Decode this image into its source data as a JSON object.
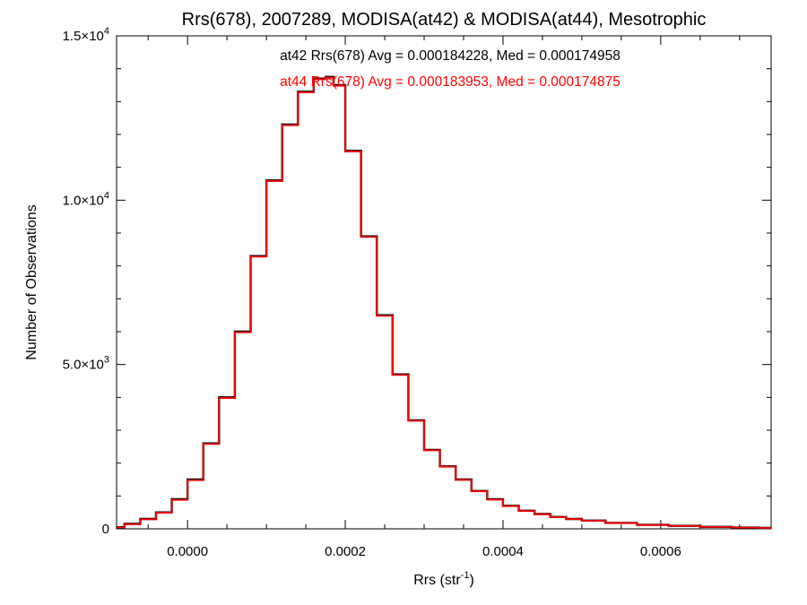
{
  "chart_data": {
    "type": "line",
    "title": "Rrs(678), 2007289, MODISA(at42) & MODISA(at44), Mesotrophic",
    "xlabel_text": "Rrs (str",
    "xlabel_sup": "-1",
    "xlabel_close": ")",
    "ylabel": "Number of Observations",
    "xlim": [
      -9e-05,
      0.00074
    ],
    "ylim": [
      0,
      15000
    ],
    "x_ticks": [
      {
        "value": 0.0,
        "label": "0.0000"
      },
      {
        "value": 0.0002,
        "label": "0.0002"
      },
      {
        "value": 0.0004,
        "label": "0.0004"
      },
      {
        "value": 0.0006,
        "label": "0.0006"
      }
    ],
    "y_ticks": [
      {
        "value": 0,
        "mantissa": "0",
        "exponent": ""
      },
      {
        "value": 5000,
        "mantissa": "5.0×10",
        "exponent": "3"
      },
      {
        "value": 10000,
        "mantissa": "1.0×10",
        "exponent": "4"
      },
      {
        "value": 15000,
        "mantissa": "1.5×10",
        "exponent": "4"
      }
    ],
    "annotations": [
      {
        "text": "at42 Rrs(678) Avg = 0.000184228, Med = 0.000174958",
        "color": "#000000"
      },
      {
        "text": "at44 Rrs(678) Avg = 0.000183953, Med = 0.000174875",
        "color": "#ff0000"
      }
    ],
    "x": [
      -9e-05,
      -7e-05,
      -5e-05,
      -3e-05,
      -1e-05,
      1e-05,
      3e-05,
      5e-05,
      7e-05,
      9e-05,
      0.00011,
      0.00013,
      0.00015,
      0.00017,
      0.00018,
      0.00019,
      0.00021,
      0.00023,
      0.00025,
      0.00027,
      0.00029,
      0.00031,
      0.00033,
      0.00035,
      0.00037,
      0.00039,
      0.00041,
      0.00043,
      0.00045,
      0.00047,
      0.00049,
      0.00051,
      0.00055,
      0.00059,
      0.00063,
      0.00067,
      0.00071,
      0.00074
    ],
    "series": [
      {
        "color": "#000000",
        "values": [
          50,
          150,
          300,
          500,
          900,
          1500,
          2600,
          4000,
          6000,
          8300,
          10600,
          12300,
          13300,
          13700,
          13750,
          13500,
          11500,
          8900,
          6500,
          4700,
          3300,
          2400,
          1900,
          1500,
          1150,
          900,
          700,
          550,
          450,
          360,
          300,
          250,
          180,
          120,
          90,
          60,
          40,
          30
        ]
      },
      {
        "color": "#ff0000",
        "values": [
          45,
          140,
          290,
          490,
          880,
          1480,
          2580,
          3980,
          5980,
          8280,
          10580,
          12280,
          13280,
          13680,
          13730,
          13480,
          11480,
          8880,
          6480,
          4680,
          3290,
          2390,
          1890,
          1490,
          1140,
          890,
          690,
          545,
          445,
          355,
          295,
          245,
          175,
          118,
          88,
          58,
          38,
          28
        ]
      }
    ]
  }
}
